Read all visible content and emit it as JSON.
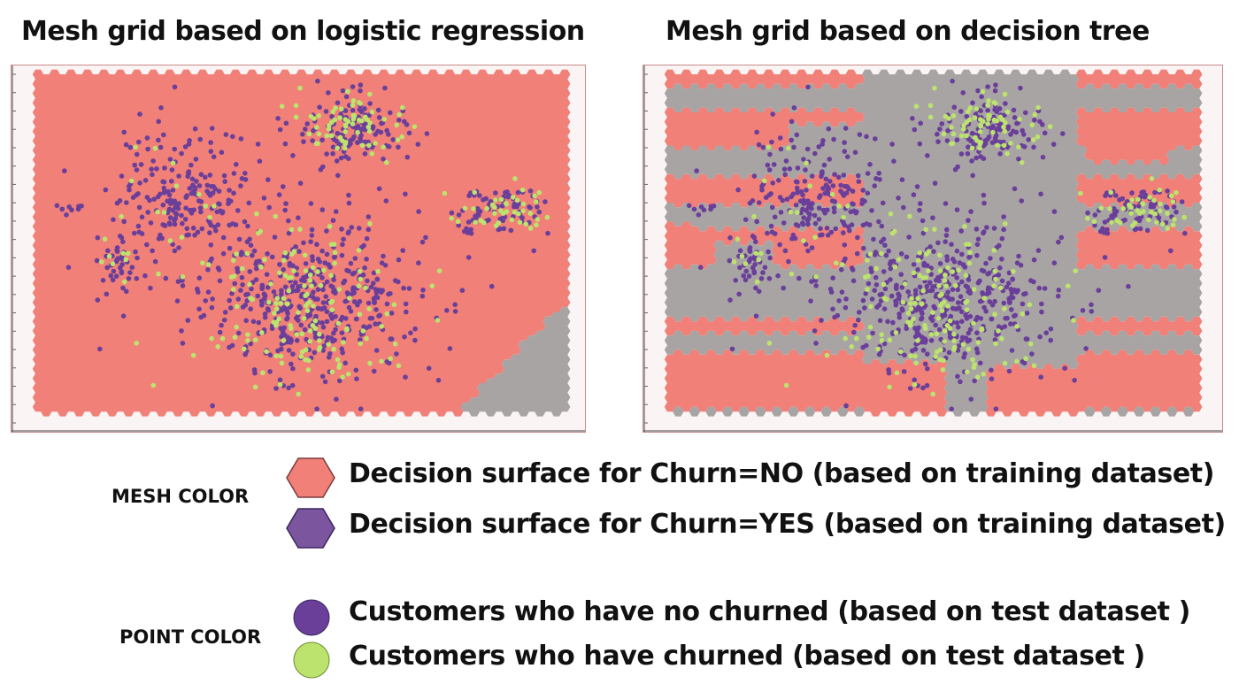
{
  "chart_data": [
    {
      "type": "scatter",
      "title": "Mesh grid based on logistic regression",
      "mesh": "logistic-regression",
      "grid": false,
      "axes_labels_visible": false
    },
    {
      "type": "scatter",
      "title": "Mesh grid based on decision tree",
      "mesh": "decision-tree",
      "grid": false,
      "axes_labels_visible": false
    }
  ],
  "colors": {
    "mesh_no": "#f08078",
    "mesh_yes": "#a8a4a4",
    "mesh_yes_legend": "#7b559e",
    "point_no_churn": "#6a3f9a",
    "point_churn": "#bce36e"
  },
  "legend": {
    "mesh_heading": "MESH COLOR",
    "point_heading": "POINT COLOR",
    "mesh_items": [
      {
        "label": "Decision surface for Churn=NO (based on training dataset)",
        "icon": "hexagon-icon",
        "color": "#f08078"
      },
      {
        "label": "Decision surface for Churn=YES (based on training dataset)",
        "icon": "hexagon-icon",
        "color": "#7b559e"
      }
    ],
    "point_items": [
      {
        "label": "Customers who have no churned (based on test dataset )",
        "icon": "circle-icon",
        "color": "#6a3f9a"
      },
      {
        "label": "Customers who have churned (based on test dataset )",
        "icon": "circle-icon",
        "color": "#bce36e"
      }
    ]
  }
}
